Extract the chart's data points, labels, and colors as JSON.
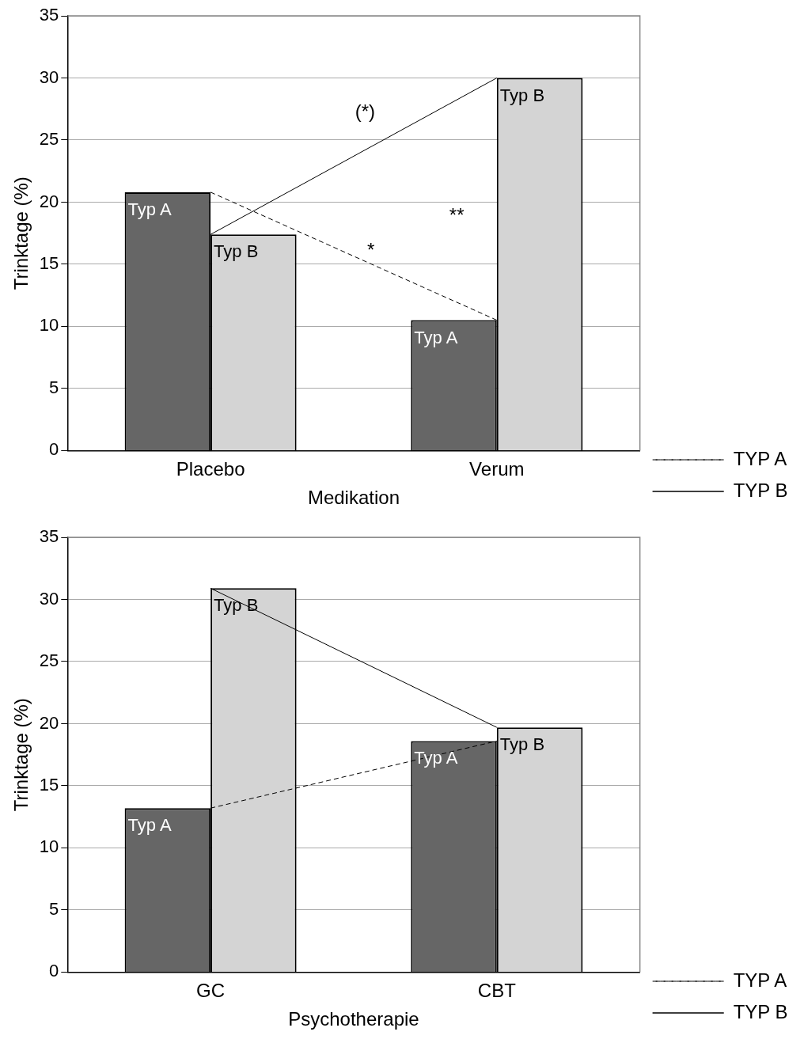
{
  "chart_data": [
    {
      "type": "bar",
      "xlabel": "Medikation",
      "ylabel": "Trinktage (%)",
      "categories": [
        "Placebo",
        "Verum"
      ],
      "series": [
        {
          "name": "Typ A",
          "color": "#666666",
          "values": [
            20.8,
            10.5
          ]
        },
        {
          "name": "Typ B",
          "color": "#d4d4d4",
          "values": [
            17.4,
            30.0
          ]
        },
        {
          "name": "TYP A",
          "type": "line",
          "color": "#000000",
          "line_style": "dashed",
          "values": [
            20.8,
            10.5
          ]
        },
        {
          "name": "TYP B",
          "type": "line",
          "color": "#000000",
          "line_style": "solid",
          "values": [
            17.4,
            30.0
          ]
        }
      ],
      "ylim": [
        0,
        35
      ],
      "yticks": [
        0,
        5,
        10,
        15,
        20,
        25,
        30,
        35
      ],
      "grid": "y",
      "legend": "right",
      "marker": "none",
      "annotations": [
        "(*)",
        "**",
        "*"
      ]
    },
    {
      "type": "bar",
      "xlabel": "Psychotherapie",
      "ylabel": "Trinktage (%)",
      "categories": [
        "GC",
        "CBT"
      ],
      "series": [
        {
          "name": "Typ A",
          "color": "#666666",
          "values": [
            13.2,
            18.6
          ]
        },
        {
          "name": "Typ B",
          "color": "#d4d4d4",
          "values": [
            30.9,
            19.7
          ]
        },
        {
          "name": "TYP A",
          "type": "line",
          "color": "#000000",
          "line_style": "dashed",
          "values": [
            13.2,
            18.6
          ]
        },
        {
          "name": "TYP B",
          "type": "line",
          "color": "#000000",
          "line_style": "solid",
          "values": [
            30.9,
            19.7
          ]
        }
      ],
      "ylim": [
        0,
        35
      ],
      "yticks": [
        0,
        5,
        10,
        15,
        20,
        25,
        30,
        35
      ],
      "grid": "y",
      "legend": "right",
      "marker": "none"
    }
  ]
}
